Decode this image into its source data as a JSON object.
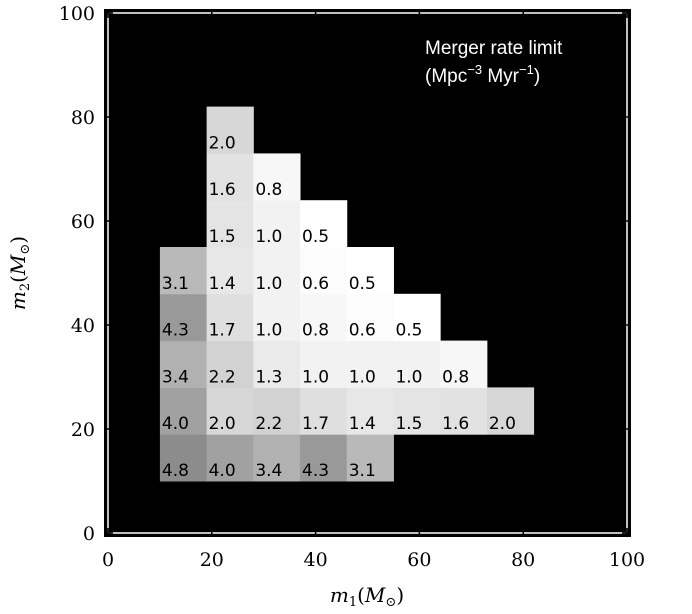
{
  "chart_data": {
    "type": "heatmap",
    "title": "",
    "annotation": {
      "line1": "Merger rate limit",
      "line2_prefix": "(Mpc",
      "line2_exp1": "−3",
      "line2_mid": " Myr",
      "line2_exp2": "−1",
      "line2_suffix": ")",
      "position": "top-right"
    },
    "xlabel": {
      "var": "m",
      "sub": "1",
      "open": "(",
      "M": "M",
      "sun": "⊙",
      "close": ")"
    },
    "ylabel": {
      "var": "m",
      "sub": "2",
      "open": "(",
      "M": "M",
      "sun": "⊙",
      "close": ")"
    },
    "xlim": [
      0,
      100
    ],
    "ylim": [
      0,
      100
    ],
    "xticks": [
      "0",
      "20",
      "40",
      "60",
      "80",
      "100"
    ],
    "yticks": [
      "0",
      "20",
      "40",
      "60",
      "80",
      "100"
    ],
    "background_color": "#000000",
    "colormap": {
      "min_value": 0.5,
      "max_value": 4.8,
      "min_color": "#ffffff",
      "max_color": "#8c8c8c"
    },
    "bin_width": 9,
    "cells": [
      {
        "m1": 10,
        "m2": 10,
        "label": "4.8",
        "value": 4.8
      },
      {
        "m1": 19,
        "m2": 10,
        "label": "4.0",
        "value": 4.0
      },
      {
        "m1": 28,
        "m2": 10,
        "label": "3.4",
        "value": 3.4
      },
      {
        "m1": 37,
        "m2": 10,
        "label": "4.3",
        "value": 4.3
      },
      {
        "m1": 46,
        "m2": 10,
        "label": "3.1",
        "value": 3.1
      },
      {
        "m1": 10,
        "m2": 19,
        "label": "4.0",
        "value": 4.0
      },
      {
        "m1": 19,
        "m2": 19,
        "label": "2.0",
        "value": 2.0
      },
      {
        "m1": 28,
        "m2": 19,
        "label": "2.2",
        "value": 2.2
      },
      {
        "m1": 37,
        "m2": 19,
        "label": "1.7",
        "value": 1.7
      },
      {
        "m1": 46,
        "m2": 19,
        "label": "1.4",
        "value": 1.4
      },
      {
        "m1": 55,
        "m2": 19,
        "label": "1.5",
        "value": 1.5
      },
      {
        "m1": 64,
        "m2": 19,
        "label": "1.6",
        "value": 1.6
      },
      {
        "m1": 73,
        "m2": 19,
        "label": "2.0",
        "value": 2.0
      },
      {
        "m1": 10,
        "m2": 28,
        "label": "3.4",
        "value": 3.4
      },
      {
        "m1": 19,
        "m2": 28,
        "label": "2.2",
        "value": 2.2
      },
      {
        "m1": 28,
        "m2": 28,
        "label": "1.3",
        "value": 1.3
      },
      {
        "m1": 37,
        "m2": 28,
        "label": "1.0",
        "value": 1.0
      },
      {
        "m1": 46,
        "m2": 28,
        "label": "1.0",
        "value": 1.0
      },
      {
        "m1": 55,
        "m2": 28,
        "label": "1.0",
        "value": 1.0
      },
      {
        "m1": 64,
        "m2": 28,
        "label": "0.8",
        "value": 0.8
      },
      {
        "m1": 10,
        "m2": 37,
        "label": "4.3",
        "value": 4.3
      },
      {
        "m1": 19,
        "m2": 37,
        "label": "1.7",
        "value": 1.7
      },
      {
        "m1": 28,
        "m2": 37,
        "label": "1.0",
        "value": 1.0
      },
      {
        "m1": 37,
        "m2": 37,
        "label": "0.8",
        "value": 0.8
      },
      {
        "m1": 46,
        "m2": 37,
        "label": "0.6",
        "value": 0.6
      },
      {
        "m1": 55,
        "m2": 37,
        "label": "0.5",
        "value": 0.5
      },
      {
        "m1": 10,
        "m2": 46,
        "label": "3.1",
        "value": 3.1
      },
      {
        "m1": 19,
        "m2": 46,
        "label": "1.4",
        "value": 1.4
      },
      {
        "m1": 28,
        "m2": 46,
        "label": "1.0",
        "value": 1.0
      },
      {
        "m1": 37,
        "m2": 46,
        "label": "0.6",
        "value": 0.6
      },
      {
        "m1": 46,
        "m2": 46,
        "label": "0.5",
        "value": 0.5
      },
      {
        "m1": 19,
        "m2": 55,
        "label": "1.5",
        "value": 1.5
      },
      {
        "m1": 28,
        "m2": 55,
        "label": "1.0",
        "value": 1.0
      },
      {
        "m1": 37,
        "m2": 55,
        "label": "0.5",
        "value": 0.5
      },
      {
        "m1": 19,
        "m2": 64,
        "label": "1.6",
        "value": 1.6
      },
      {
        "m1": 28,
        "m2": 64,
        "label": "0.8",
        "value": 0.8
      },
      {
        "m1": 19,
        "m2": 73,
        "label": "2.0",
        "value": 2.0
      }
    ]
  }
}
